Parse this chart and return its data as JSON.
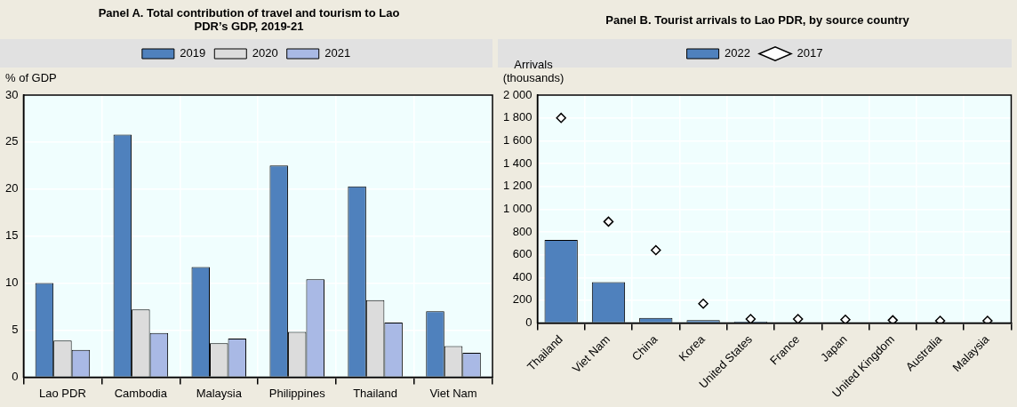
{
  "chart_data": [
    {
      "type": "bar",
      "title": "Panel A. Total contribution of travel and tourism to Lao PDR’s GDP, 2019-21",
      "ylabel": "% of GDP",
      "categories": [
        "Lao PDR",
        "Cambodia",
        "Malaysia",
        "Philippines",
        "Thailand",
        "Viet Nam"
      ],
      "series": [
        {
          "name": "2019",
          "color": "#4f81bd",
          "values": [
            10.0,
            25.8,
            11.7,
            22.5,
            20.3,
            7.0
          ]
        },
        {
          "name": "2020",
          "color": "#dcdcdc",
          "values": [
            3.9,
            7.2,
            3.6,
            4.8,
            8.2,
            3.3
          ]
        },
        {
          "name": "2021",
          "color": "#a9b9e5",
          "values": [
            2.9,
            4.7,
            4.1,
            10.4,
            5.8,
            2.6
          ]
        }
      ],
      "ylim": [
        0,
        30
      ],
      "yticks": [
        0,
        5,
        10,
        15,
        20,
        25,
        30
      ],
      "grid": true,
      "legend": "top"
    },
    {
      "type": "bar",
      "title": "Panel B. Tourist arrivals to Lao PDR, by source country",
      "ylabel": "Arrivals (thousands)",
      "categories": [
        "Thailand",
        "Viet Nam",
        "China",
        "Korea",
        "United States",
        "France",
        "Japan",
        "United Kingdom",
        "Australia",
        "Malaysia"
      ],
      "series": [
        {
          "name": "2022",
          "type": "bar",
          "color": "#4f81bd",
          "values": [
            730,
            360,
            45,
            25,
            15,
            null,
            null,
            null,
            null,
            null
          ]
        },
        {
          "name": "2017",
          "type": "scatter",
          "marker": "diamond",
          "color": "#ffffff",
          "x": [
            "Thailand",
            "Viet Nam",
            "China",
            "Korea",
            "United States",
            "France",
            "Japan",
            "United Kingdom",
            "Australia",
            "Malaysia"
          ],
          "values": [
            1800,
            890,
            640,
            170,
            35,
            35,
            30,
            25,
            20,
            20
          ]
        }
      ],
      "ylim": [
        0,
        2000
      ],
      "yticks": [
        0,
        {
          "value": 200,
          "label": "200"
        },
        {
          "value": 400,
          "label": "400"
        },
        {
          "value": 600,
          "label": "600"
        },
        {
          "value": 800,
          "label": "800"
        },
        {
          "value": 1000,
          "label": "1 000"
        },
        {
          "value": 1200,
          "label": "1 200"
        },
        {
          "value": 1400,
          "label": "1 400"
        },
        {
          "value": 1600,
          "label": "1 600"
        },
        {
          "value": 1800,
          "label": "1 800"
        },
        {
          "value": 2000,
          "label": "2 000"
        }
      ],
      "grid": true,
      "legend": "top"
    }
  ]
}
